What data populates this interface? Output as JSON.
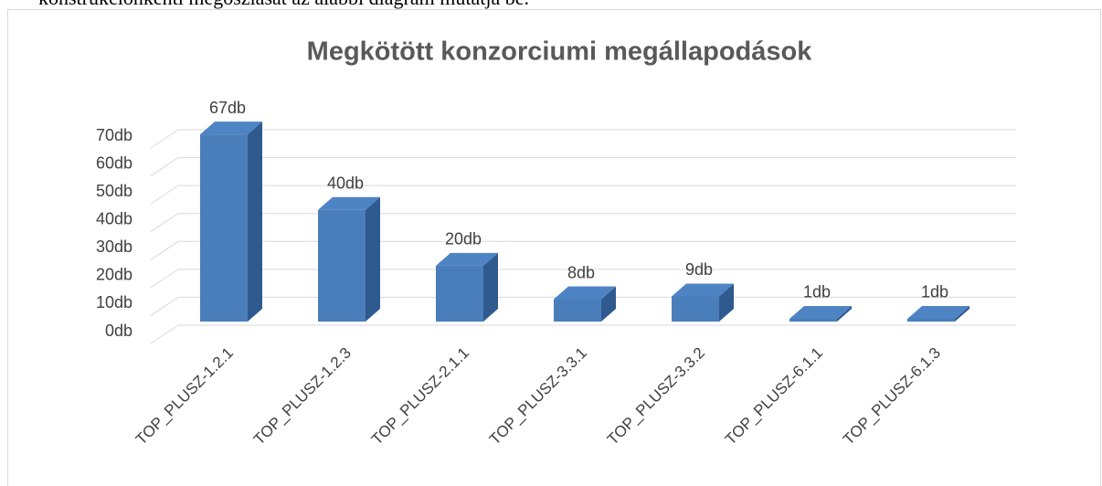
{
  "intro_text": "konstrukciónkénti megoszlását az alábbi diagram mutatja be.",
  "chart_data": {
    "type": "bar3d",
    "title": "Megkötött konzorciumi megállapodások",
    "categories": [
      "TOP_PLUSZ-1.2.1",
      "TOP_PLUSZ-1.2.3",
      "TOP_PLUSZ-2.1.1",
      "TOP_PLUSZ-3.3.1",
      "TOP_PLUSZ-3.3.2",
      "TOP_PLUSZ-6.1.1",
      "TOP_PLUSZ-6.1.3"
    ],
    "values": [
      67,
      40,
      20,
      8,
      9,
      1,
      1
    ],
    "value_labels": [
      "67db",
      "40db",
      "20db",
      "8db",
      "9db",
      "1db",
      "1db"
    ],
    "color": "#4a7ebb",
    "ylim": [
      0,
      70
    ],
    "yticks": [
      {
        "value": 0,
        "label": "0db"
      },
      {
        "value": 10,
        "label": "10db"
      },
      {
        "value": 20,
        "label": "20db"
      },
      {
        "value": 30,
        "label": "30db"
      },
      {
        "value": 40,
        "label": "40db"
      },
      {
        "value": 50,
        "label": "50db"
      },
      {
        "value": 60,
        "label": "60db"
      },
      {
        "value": 70,
        "label": "70db"
      }
    ],
    "grid": true
  }
}
